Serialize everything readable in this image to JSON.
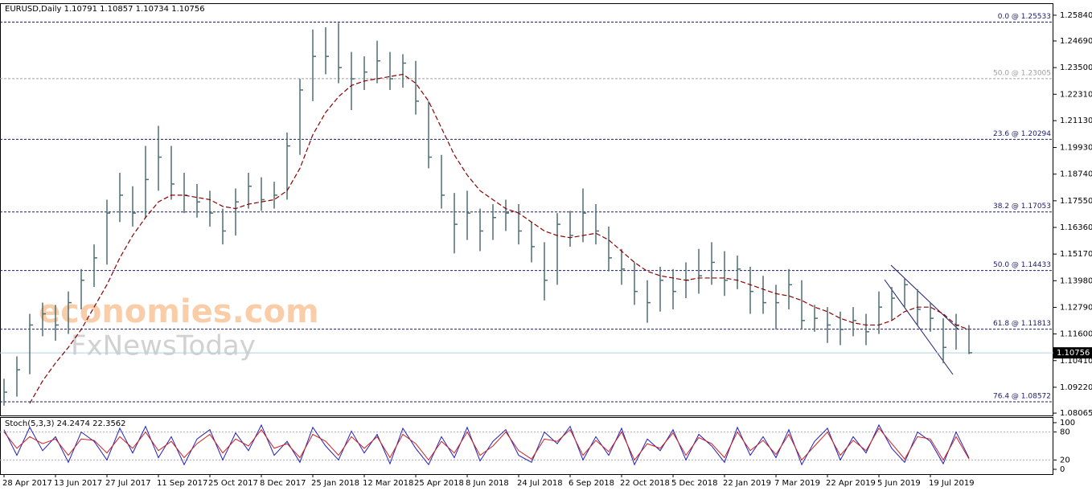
{
  "chart_data": [
    {
      "type": "ohlc",
      "title": "EURUSD,Daily  1.10791 1.10857 1.10734 1.10756",
      "categories": [
        "28 Apr 2017",
        null,
        null,
        null,
        "13 Jun 2017",
        null,
        null,
        null,
        "27 Jul 2017",
        null,
        null,
        null,
        "11 Sep 2017",
        null,
        null,
        null,
        "25 Oct 2017",
        null,
        null,
        null,
        "8 Dec 2017",
        null,
        null,
        null,
        "25 Jan 2018",
        null,
        null,
        null,
        "12 Mar 2018",
        null,
        null,
        null,
        "25 Apr 2018",
        null,
        null,
        null,
        "8 Jun 2018",
        null,
        null,
        null,
        "24 Jul 2018",
        null,
        null,
        null,
        "6 Sep 2018",
        null,
        null,
        null,
        "22 Oct 2018",
        null,
        null,
        null,
        "5 Dec 2018",
        null,
        null,
        null,
        "22 Jan 2019",
        null,
        null,
        null,
        "7 Mar 2019",
        null,
        null,
        null,
        "22 Apr 2019",
        null,
        null,
        null,
        "5 Jun 2019",
        null,
        null,
        null,
        "19 Jul 2019",
        null,
        null,
        null
      ],
      "high": [
        1.096,
        1.106,
        1.125,
        1.13,
        1.129,
        1.135,
        1.145,
        1.156,
        1.176,
        1.188,
        1.182,
        1.2,
        1.209,
        1.2,
        1.188,
        1.183,
        1.18,
        1.172,
        1.181,
        1.188,
        1.186,
        1.184,
        1.206,
        1.23,
        1.252,
        1.253,
        1.255,
        1.242,
        1.24,
        1.247,
        1.242,
        1.241,
        1.238,
        1.22,
        1.196,
        1.179,
        1.18,
        1.172,
        1.174,
        1.176,
        1.174,
        1.166,
        1.157,
        1.17,
        1.171,
        1.181,
        1.174,
        1.164,
        1.154,
        1.148,
        1.14,
        1.146,
        1.145,
        1.148,
        1.154,
        1.157,
        1.153,
        1.151,
        1.146,
        1.142,
        1.138,
        1.145,
        1.14,
        1.129,
        1.128,
        1.126,
        1.128,
        1.125,
        1.135,
        1.137,
        1.141,
        1.136,
        1.13,
        1.123,
        1.125,
        1.12
      ],
      "low": [
        1.084,
        1.088,
        1.098,
        1.115,
        1.113,
        1.116,
        1.127,
        1.137,
        1.147,
        1.166,
        1.164,
        1.168,
        1.18,
        1.176,
        1.17,
        1.168,
        1.164,
        1.156,
        1.16,
        1.172,
        1.171,
        1.172,
        1.176,
        1.196,
        1.22,
        1.232,
        1.228,
        1.216,
        1.225,
        1.228,
        1.225,
        1.226,
        1.214,
        1.19,
        1.172,
        1.152,
        1.158,
        1.153,
        1.158,
        1.162,
        1.156,
        1.148,
        1.131,
        1.138,
        1.155,
        1.157,
        1.156,
        1.144,
        1.138,
        1.129,
        1.121,
        1.126,
        1.127,
        1.132,
        1.134,
        1.138,
        1.133,
        1.136,
        1.125,
        1.125,
        1.118,
        1.127,
        1.118,
        1.117,
        1.112,
        1.111,
        1.115,
        1.111,
        1.116,
        1.122,
        1.128,
        1.12,
        1.117,
        1.103,
        1.109,
        1.107
      ],
      "close": [
        1.09,
        1.1,
        1.12,
        1.125,
        1.12,
        1.13,
        1.14,
        1.15,
        1.17,
        1.178,
        1.17,
        1.185,
        1.195,
        1.183,
        1.178,
        1.175,
        1.17,
        1.162,
        1.175,
        1.182,
        1.176,
        1.178,
        1.2,
        1.225,
        1.24,
        1.24,
        1.235,
        1.23,
        1.233,
        1.238,
        1.23,
        1.237,
        1.22,
        1.195,
        1.178,
        1.165,
        1.17,
        1.162,
        1.168,
        1.17,
        1.162,
        1.155,
        1.14,
        1.165,
        1.16,
        1.17,
        1.162,
        1.15,
        1.145,
        1.135,
        1.13,
        1.14,
        1.135,
        1.14,
        1.142,
        1.148,
        1.14,
        1.145,
        1.135,
        1.13,
        1.13,
        1.138,
        1.122,
        1.123,
        1.12,
        1.118,
        1.122,
        1.117,
        1.128,
        1.132,
        1.138,
        1.127,
        1.123,
        1.11,
        1.12,
        1.1076
      ],
      "color": "#4d6e73",
      "ma_values": [
        null,
        null,
        1.085,
        1.095,
        1.103,
        1.11,
        1.118,
        1.128,
        1.138,
        1.15,
        1.16,
        1.168,
        1.175,
        1.178,
        1.178,
        1.177,
        1.176,
        1.173,
        1.172,
        1.174,
        1.175,
        1.176,
        1.18,
        1.19,
        1.205,
        1.215,
        1.222,
        1.227,
        1.229,
        1.23,
        1.231,
        1.232,
        1.228,
        1.22,
        1.208,
        1.196,
        1.187,
        1.18,
        1.176,
        1.172,
        1.17,
        1.166,
        1.162,
        1.16,
        1.159,
        1.16,
        1.161,
        1.158,
        1.153,
        1.148,
        1.144,
        1.142,
        1.141,
        1.14,
        1.141,
        1.141,
        1.141,
        1.14,
        1.138,
        1.136,
        1.134,
        1.133,
        1.131,
        1.128,
        1.126,
        1.123,
        1.121,
        1.12,
        1.12,
        1.122,
        1.126,
        1.128,
        1.128,
        1.125,
        1.12,
        1.118
      ],
      "ma_color": "#8b0000",
      "ylim": [
        1.0796,
        1.2634
      ],
      "yticks": [
        {
          "value": 1.2584,
          "label": "1.25840"
        },
        {
          "value": 1.2469,
          "label": "1.24690"
        },
        {
          "value": 1.235,
          "label": "1.23500"
        },
        {
          "value": 1.2231,
          "label": "1.22310"
        },
        {
          "value": 1.2113,
          "label": "1.21130"
        },
        {
          "value": 1.1993,
          "label": "1.19930"
        },
        {
          "value": 1.1874,
          "label": "1.18740"
        },
        {
          "value": 1.1755,
          "label": "1.17550"
        },
        {
          "value": 1.1636,
          "label": "1.16360"
        },
        {
          "value": 1.1517,
          "label": "1.15170"
        },
        {
          "value": 1.1398,
          "label": "1.13980"
        },
        {
          "value": 1.1279,
          "label": "1.12790"
        },
        {
          "value": 1.116,
          "label": "1.11600"
        },
        {
          "value": 1.1041,
          "label": "1.10410"
        },
        {
          "value": 1.0922,
          "label": "1.09220"
        },
        {
          "value": 1.08065,
          "label": "1.08065"
        }
      ],
      "levels": [
        {
          "value": 1.25533,
          "label": "0.0 @ 1.25533",
          "color": "#1a1a6e"
        },
        {
          "value": 1.23005,
          "label": "50.0 @ 1.23005",
          "color": "#a0a0a0"
        },
        {
          "value": 1.20294,
          "label": "23.6 @ 1.20294",
          "color": "#1a1a6e"
        },
        {
          "value": 1.17053,
          "label": "38.2 @ 1.17053",
          "color": "#1a1a6e"
        },
        {
          "value": 1.14433,
          "label": "50.0 @ 1.14433",
          "color": "#1a1a6e"
        },
        {
          "value": 1.11813,
          "label": "61.8 @ 1.11813",
          "color": "#1a1a6e"
        },
        {
          "value": 1.08572,
          "label": "76.4 @ 1.08572",
          "color": "#1a1a6e"
        }
      ],
      "last_price": {
        "value": 1.10756,
        "label": "1.10756"
      },
      "watermark": {
        "brand": "economies.com",
        "sub": "FxNewsToday"
      }
    },
    {
      "type": "line",
      "title": "Stoch(5,3,3) 24.2474 22.3562",
      "series": [
        {
          "color": "#1f1fbf",
          "values": [
            85,
            30,
            90,
            40,
            70,
            15,
            80,
            60,
            20,
            88,
            35,
            92,
            25,
            70,
            10,
            65,
            85,
            20,
            78,
            40,
            95,
            30,
            60,
            15,
            90,
            50,
            20,
            82,
            35,
            75,
            12,
            88,
            45,
            10,
            70,
            25,
            90,
            18,
            60,
            85,
            30,
            15,
            80,
            55,
            92,
            20,
            70,
            30,
            88,
            10,
            65,
            40,
            85,
            20,
            75,
            50,
            15,
            90,
            30,
            70,
            25,
            85,
            10,
            60,
            88,
            20,
            70,
            35,
            95,
            45,
            15,
            80,
            60,
            12,
            80,
            24.2474
          ]
        },
        {
          "color": "#d02020",
          "values": [
            80,
            45,
            70,
            55,
            65,
            30,
            65,
            62,
            35,
            70,
            45,
            80,
            40,
            60,
            25,
            55,
            75,
            35,
            65,
            50,
            85,
            45,
            55,
            25,
            75,
            60,
            30,
            70,
            45,
            70,
            25,
            75,
            55,
            20,
            60,
            35,
            80,
            30,
            50,
            80,
            40,
            22,
            65,
            60,
            85,
            30,
            62,
            38,
            80,
            20,
            55,
            45,
            78,
            30,
            68,
            55,
            25,
            80,
            40,
            62,
            32,
            75,
            20,
            50,
            80,
            30,
            62,
            40,
            88,
            55,
            22,
            70,
            65,
            20,
            70,
            22.3562
          ]
        }
      ],
      "ylim": [
        -10.3,
        110.3
      ],
      "yticks": [
        0,
        20,
        80,
        100
      ],
      "levels": [
        20,
        80
      ]
    }
  ]
}
